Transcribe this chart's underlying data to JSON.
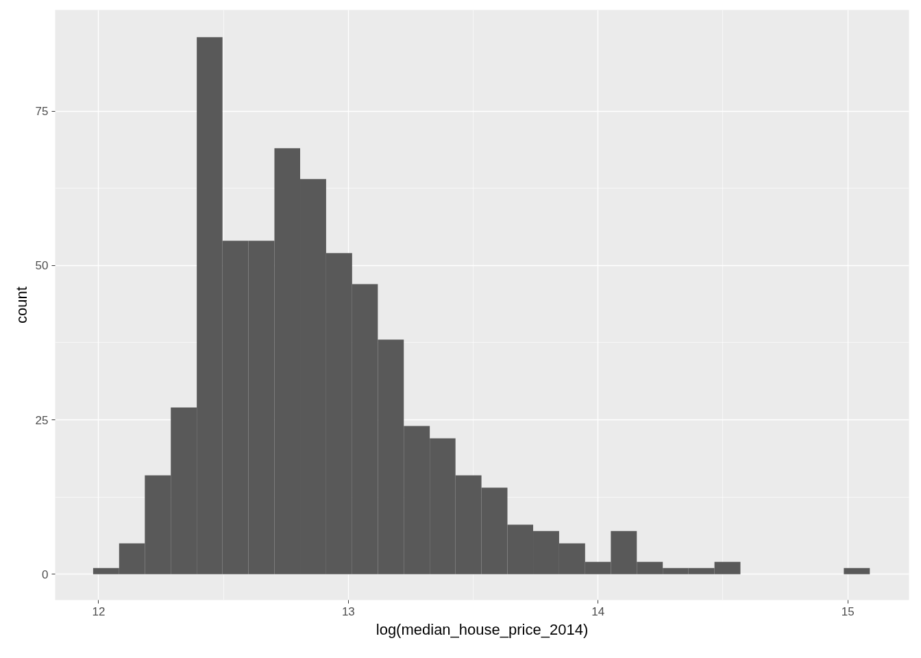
{
  "chart_data": {
    "type": "histogram",
    "xlabel": "log(median_house_price_2014)",
    "ylabel": "count",
    "color": "#595959",
    "bins": [
      11.978,
      12.082,
      12.185,
      12.289,
      12.393,
      12.496,
      12.6,
      12.704,
      12.807,
      12.911,
      13.015,
      13.118,
      13.222,
      13.326,
      13.429,
      13.533,
      13.637,
      13.74,
      13.844,
      13.948,
      14.051,
      14.155,
      14.259,
      14.362,
      14.466,
      14.57,
      14.673,
      14.777,
      14.881,
      14.984,
      15.088
    ],
    "values": [
      1,
      5,
      16,
      27,
      87,
      54,
      54,
      69,
      64,
      52,
      47,
      38,
      24,
      22,
      16,
      14,
      8,
      7,
      5,
      2,
      7,
      2,
      1,
      1,
      2,
      0,
      0,
      0,
      0,
      1
    ],
    "xlim": [
      11.826,
      15.245
    ],
    "ylim": [
      -4.2,
      91.4
    ],
    "xticks": [
      12,
      13,
      14,
      15
    ],
    "yticks": [
      0,
      25,
      50,
      75
    ],
    "grid": true
  }
}
